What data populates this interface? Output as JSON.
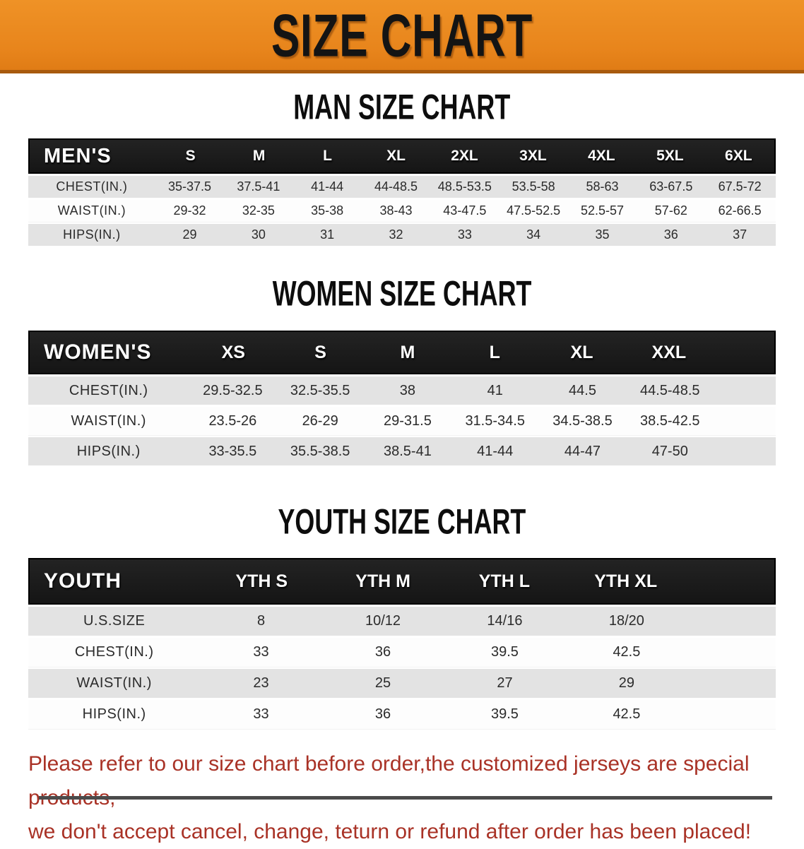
{
  "banner": {
    "title": "SIZE CHART",
    "bg_color": "#e8851c",
    "text_color": "#141414"
  },
  "sections": [
    {
      "heading": "MAN SIZE CHART",
      "table": {
        "corner": "MEN'S",
        "columns": [
          "S",
          "M",
          "L",
          "XL",
          "2XL",
          "3XL",
          "4XL",
          "5XL",
          "6XL"
        ],
        "rows": [
          {
            "label": "CHEST(IN.)",
            "values": [
              "35-37.5",
              "37.5-41",
              "41-44",
              "44-48.5",
              "48.5-53.5",
              "53.5-58",
              "58-63",
              "63-67.5",
              "67.5-72"
            ]
          },
          {
            "label": "WAIST(IN.)",
            "values": [
              "29-32",
              "32-35",
              "35-38",
              "38-43",
              "43-47.5",
              "47.5-52.5",
              "52.5-57",
              "57-62",
              "62-66.5"
            ]
          },
          {
            "label": "HIPS(IN.)",
            "values": [
              "29",
              "30",
              "31",
              "32",
              "33",
              "34",
              "35",
              "36",
              "37"
            ]
          }
        ]
      }
    },
    {
      "heading": "WOMEN SIZE CHART",
      "table": {
        "corner": "WOMEN'S",
        "columns": [
          "XS",
          "S",
          "M",
          "L",
          "XL",
          "XXL"
        ],
        "rows": [
          {
            "label": "CHEST(IN.)",
            "values": [
              "29.5-32.5",
              "32.5-35.5",
              "38",
              "41",
              "44.5",
              "44.5-48.5"
            ]
          },
          {
            "label": "WAIST(IN.)",
            "values": [
              "23.5-26",
              "26-29",
              "29-31.5",
              "31.5-34.5",
              "34.5-38.5",
              "38.5-42.5"
            ]
          },
          {
            "label": "HIPS(IN.)",
            "values": [
              "33-35.5",
              "35.5-38.5",
              "38.5-41",
              "41-44",
              "44-47",
              "47-50"
            ]
          }
        ]
      }
    },
    {
      "heading": "YOUTH SIZE CHART",
      "table": {
        "corner": "YOUTH",
        "columns": [
          "YTH S",
          "YTH M",
          "YTH L",
          "YTH XL"
        ],
        "rows": [
          {
            "label": "U.S.SIZE",
            "values": [
              "8",
              "10/12",
              "14/16",
              "18/20"
            ]
          },
          {
            "label": "CHEST(IN.)",
            "values": [
              "33",
              "36",
              "39.5",
              "42.5"
            ]
          },
          {
            "label": "WAIST(IN.)",
            "values": [
              "23",
              "25",
              "27",
              "29"
            ]
          },
          {
            "label": "HIPS(IN.)",
            "values": [
              "33",
              "36",
              "39.5",
              "42.5"
            ]
          }
        ]
      }
    }
  ],
  "disclaimer": {
    "line1": "Please refer to our size chart before order,the customized jerseys are special products,",
    "line2": "we don't accept cancel, change, teturn or refund after order has been placed!",
    "color": "#a93226"
  }
}
